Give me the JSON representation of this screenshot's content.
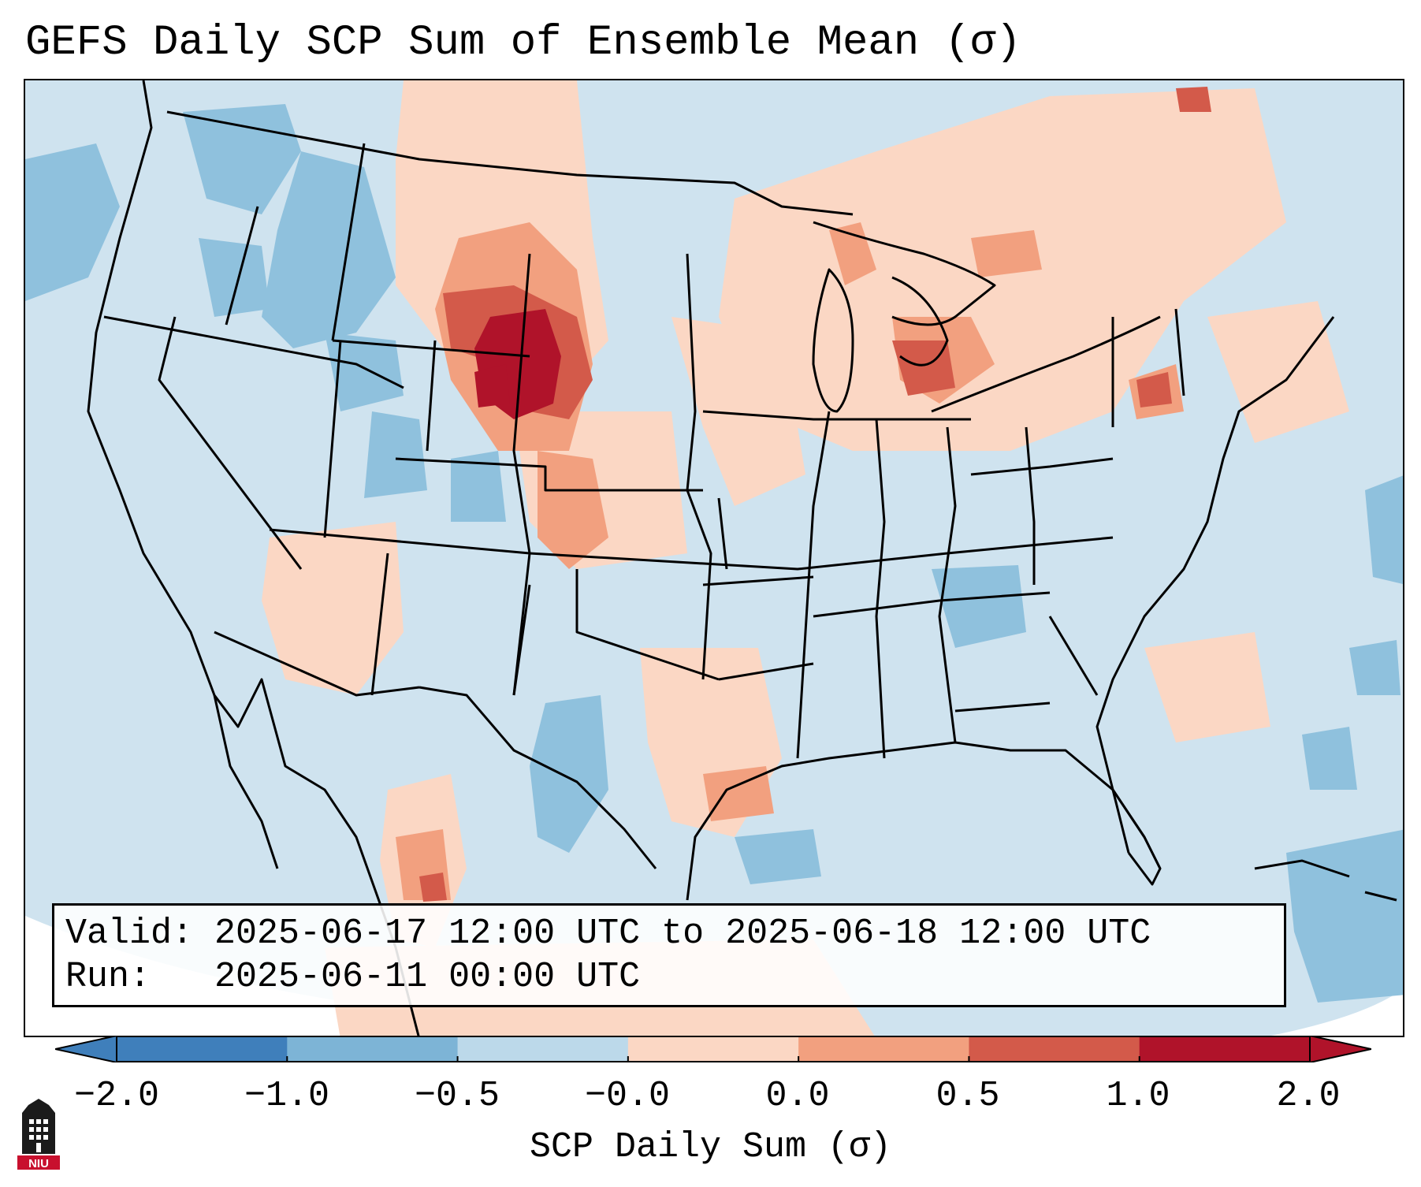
{
  "title": "GEFS Daily SCP Sum of Ensemble Mean (σ)",
  "info": {
    "valid_line": "Valid: 2025-06-17 12:00 UTC to 2025-06-18 12:00 UTC",
    "run_line": "Run:   2025-06-11 00:00 UTC"
  },
  "colorbar": {
    "label": "SCP Daily Sum (σ)",
    "ticks": [
      "−2.0",
      "−1.0",
      "−0.5",
      "−0.0",
      "0.0",
      "0.5",
      "1.0",
      "2.0"
    ],
    "colors": [
      "#3f7fbb",
      "#7db4d6",
      "#bcd9ea",
      "#eef3f6",
      "#fbd7c4",
      "#f2a07f",
      "#d35a4a",
      "#b0132a"
    ],
    "extend": "both"
  },
  "legend_palette": {
    "neg_strong": "#3f7fbb",
    "neg_mid": "#7db4d6",
    "neg_weak": "#cfe3ef",
    "pos_weak": "#fbd7c4",
    "pos_mid": "#f2a07f",
    "pos_strong": "#d35a4a",
    "pos_max": "#b0132a"
  },
  "logo": {
    "text": "NIU",
    "icon": "niu-tower-icon"
  }
}
